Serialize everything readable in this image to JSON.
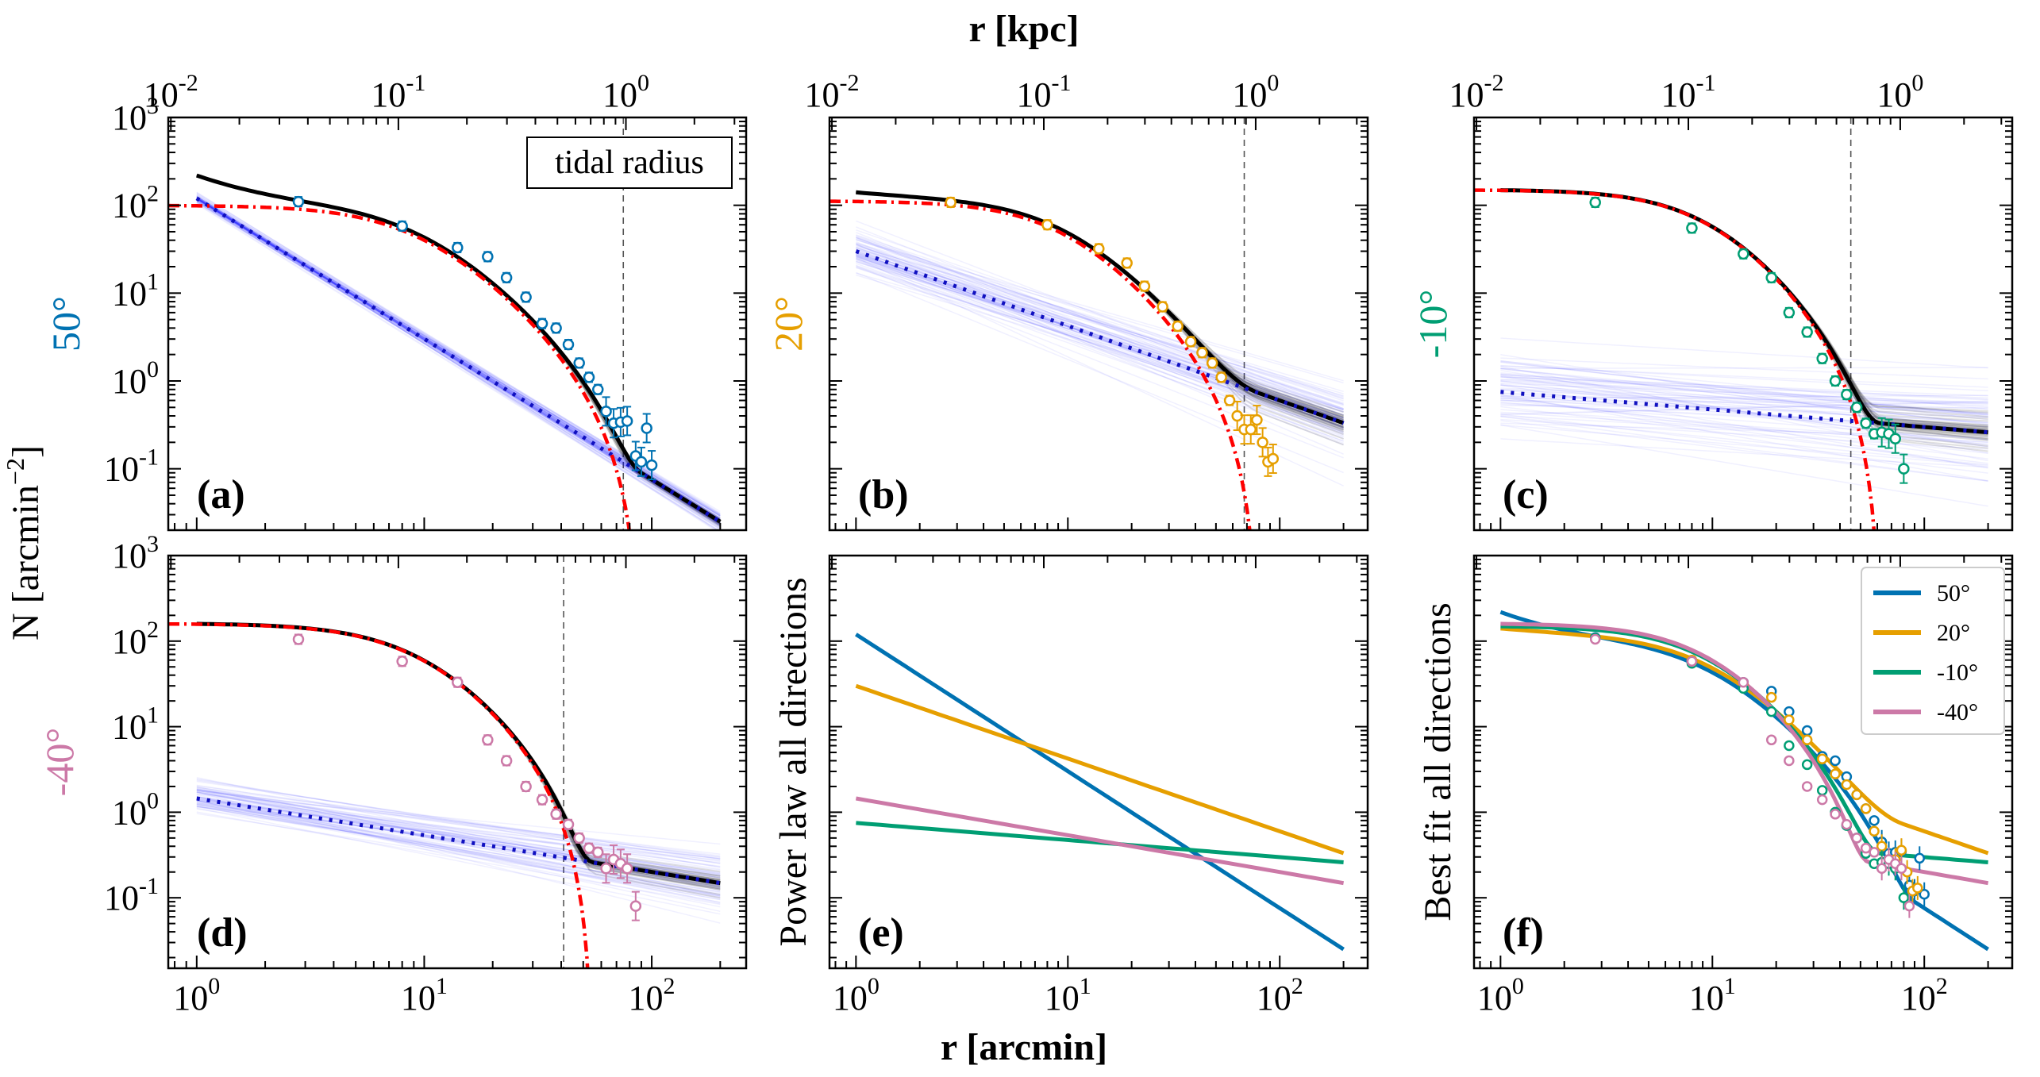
{
  "chart_data": {
    "type": "multi-panel line/scatter (log-log)",
    "x_axis": {
      "label": "r [arcmin]",
      "scale": "log",
      "range": [
        0.75,
        260
      ],
      "ticks": [
        1,
        10,
        100
      ],
      "tick_labels": [
        "10^0",
        "10^1",
        "10^2"
      ]
    },
    "x_top_axis": {
      "label": "r [kpc]",
      "scale": "log",
      "ticks": [
        0.1,
        1
      ],
      "tick_labels": [
        "10^-1",
        "10^0"
      ],
      "arcmin_per_kpc": 77
    },
    "y_axis": {
      "label": "N [arcmin^-2]",
      "scale": "log",
      "range_top": [
        0.02,
        1000
      ],
      "range_bottom": [
        0.015,
        1000
      ],
      "tick_labels": [
        "10^-1",
        "10^0",
        "10^1",
        "10^2",
        "10^3"
      ]
    },
    "colors": {
      "50": "#0072B2",
      "20": "#E69F00",
      "-10": "#009E73",
      "-40": "#CC79A7",
      "king": "#ff0000",
      "powerlaw": "#0000ff",
      "total": "#000000"
    },
    "tidal_radius": 75,
    "tidal_radius_label": "tidal radius",
    "directions": [
      {
        "key": "50",
        "label": "50°",
        "panel": "(a)",
        "power_law": {
          "A": 120,
          "slope": -1.6
        },
        "king": {
          "k": 100,
          "rc": 9,
          "rt": 90
        },
        "tidal_line": 75,
        "points": [
          [
            2.8,
            110
          ],
          [
            8,
            58
          ],
          [
            14,
            33
          ],
          [
            19,
            26
          ],
          [
            23,
            15
          ],
          [
            28,
            9
          ],
          [
            33,
            4.5
          ],
          [
            38,
            4
          ],
          [
            43,
            2.6
          ],
          [
            48,
            1.6
          ],
          [
            53,
            1.1
          ],
          [
            58,
            0.8
          ],
          [
            63,
            0.45
          ],
          [
            68,
            0.33
          ],
          [
            73,
            0.34
          ],
          [
            78,
            0.35
          ],
          [
            85,
            0.14
          ],
          [
            90,
            0.12
          ],
          [
            95,
            0.29
          ],
          [
            100,
            0.11
          ]
        ]
      },
      {
        "key": "20",
        "label": "20°",
        "panel": "(b)",
        "power_law": {
          "A": 30,
          "slope": -0.85
        },
        "king": {
          "k": 112,
          "rc": 9,
          "rt": 80
        },
        "tidal_line": 68,
        "points": [
          [
            2.8,
            108
          ],
          [
            8,
            60
          ],
          [
            14,
            32
          ],
          [
            19,
            22
          ],
          [
            23,
            12
          ],
          [
            28,
            7
          ],
          [
            33,
            4.2
          ],
          [
            38,
            2.8
          ],
          [
            43,
            2.1
          ],
          [
            48,
            1.6
          ],
          [
            53,
            1.1
          ],
          [
            58,
            0.6
          ],
          [
            63,
            0.4
          ],
          [
            68,
            0.28
          ],
          [
            73,
            0.28
          ],
          [
            78,
            0.36
          ],
          [
            83,
            0.2
          ],
          [
            88,
            0.12
          ],
          [
            93,
            0.13
          ]
        ]
      },
      {
        "key": "-10",
        "label": "-10°",
        "panel": "(c)",
        "power_law": {
          "A": 0.75,
          "slope": -0.2
        },
        "king": {
          "k": 150,
          "rc": 9,
          "rt": 62
        },
        "tidal_line": 45,
        "points": [
          [
            2.8,
            108
          ],
          [
            8,
            55
          ],
          [
            14,
            28
          ],
          [
            19,
            15
          ],
          [
            23,
            6
          ],
          [
            28,
            3.6
          ],
          [
            33,
            1.8
          ],
          [
            38,
            1.0
          ],
          [
            43,
            0.7
          ],
          [
            48,
            0.5
          ],
          [
            53,
            0.33
          ],
          [
            58,
            0.25
          ],
          [
            63,
            0.26
          ],
          [
            68,
            0.25
          ],
          [
            73,
            0.22
          ],
          [
            80,
            0.1
          ]
        ]
      },
      {
        "key": "-40",
        "label": "-40°",
        "panel": "(d)",
        "power_law": {
          "A": 1.45,
          "slope": -0.43
        },
        "king": {
          "k": 160,
          "rc": 9,
          "rt": 55
        },
        "tidal_line": 41,
        "points": [
          [
            2.8,
            105
          ],
          [
            8,
            58
          ],
          [
            14,
            33
          ],
          [
            19,
            7
          ],
          [
            23,
            4
          ],
          [
            28,
            2
          ],
          [
            33,
            1.4
          ],
          [
            38,
            0.95
          ],
          [
            43,
            0.72
          ],
          [
            48,
            0.5
          ],
          [
            53,
            0.38
          ],
          [
            58,
            0.34
          ],
          [
            63,
            0.22
          ],
          [
            68,
            0.28
          ],
          [
            73,
            0.25
          ],
          [
            78,
            0.22
          ],
          [
            85,
            0.08
          ]
        ]
      }
    ],
    "panel_e": {
      "panel": "(e)",
      "ylabel": "Power law all directions"
    },
    "panel_f": {
      "panel": "(f)",
      "ylabel": "Best fit all directions"
    },
    "legend": [
      "50°",
      "20°",
      "-10°",
      "-40°"
    ]
  }
}
